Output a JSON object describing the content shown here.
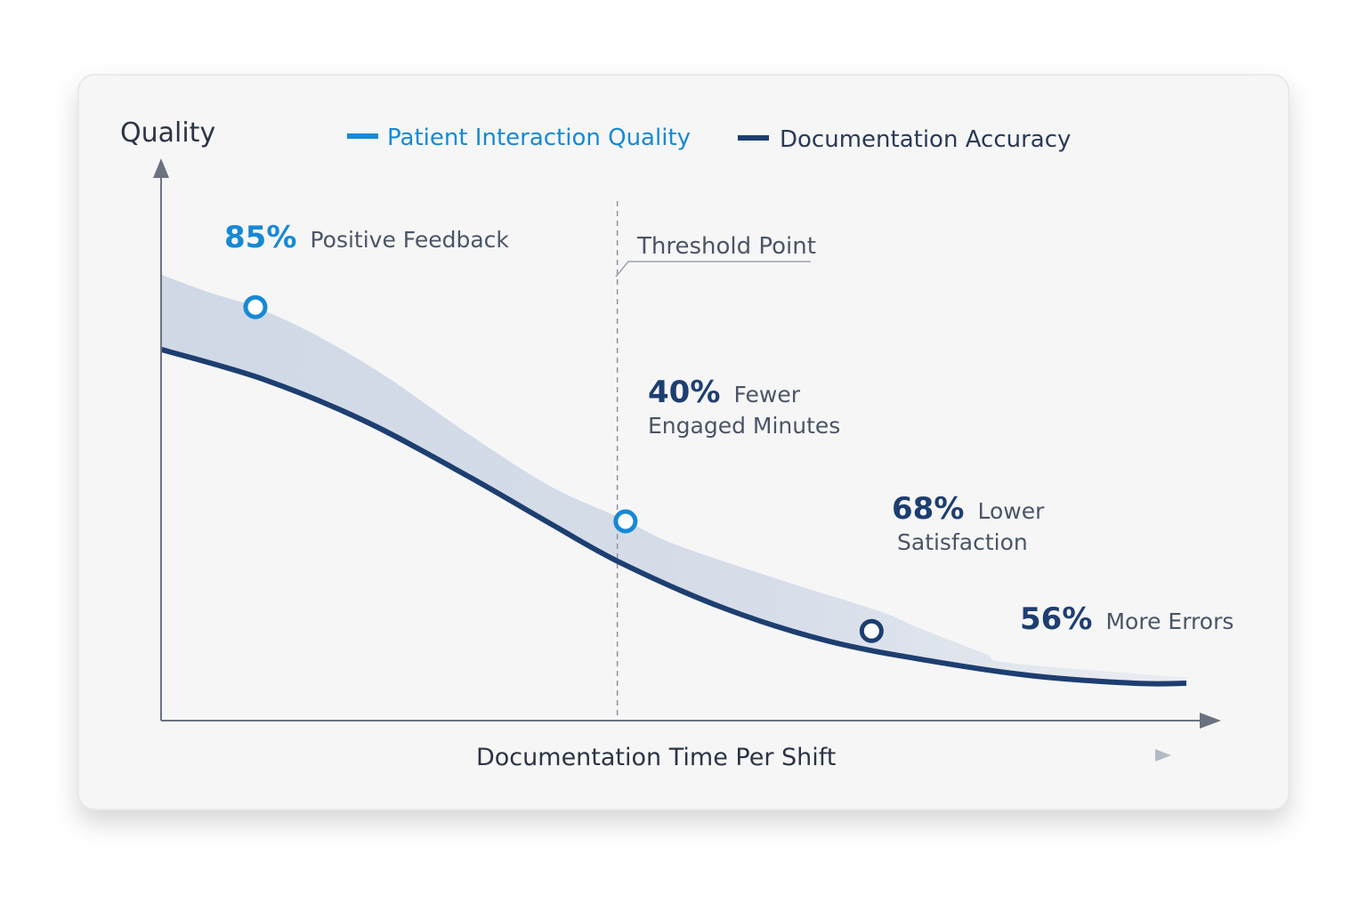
{
  "colors": {
    "light_series": "#1789d4",
    "dark_series": "#1d3e70",
    "axis": "#6b7280",
    "label_text": "#4a5566",
    "band_fill": "#c9d3e3",
    "card_bg": "#f6f6f7"
  },
  "chart_data": {
    "type": "line",
    "title": "",
    "ylabel": "Quality",
    "xlabel": "Documentation Time Per Shift",
    "xlim": [
      0,
      100
    ],
    "ylim": [
      0,
      100
    ],
    "grid": false,
    "legend_position": "top",
    "legend": [
      {
        "name": "Patient Interaction Quality",
        "color": "#1789d4"
      },
      {
        "name": "Documentation Accuracy",
        "color": "#1d3e70"
      }
    ],
    "series": [
      {
        "name": "Patient Interaction Quality",
        "x": [
          0,
          4.6,
          9.2,
          15,
          22,
          30,
          38,
          45,
          50,
          60,
          70,
          74,
          80.3,
          83
        ],
        "y": [
          82,
          78.5,
          75.5,
          70,
          61.5,
          50,
          39.5,
          33,
          28,
          21,
          14.5,
          11,
          6,
          4
        ]
      },
      {
        "name": "Documentation Accuracy",
        "x": [
          0,
          10,
          20,
          30,
          38,
          45,
          55,
          65,
          75,
          85,
          95,
          100
        ],
        "y": [
          67,
          61,
          52.5,
          41.5,
          32,
          24,
          15,
          8.5,
          4.5,
          1.5,
          0,
          0
        ]
      }
    ],
    "markers": [
      {
        "series": 0,
        "x": 9.2,
        "y": 75.5
      },
      {
        "series": 0,
        "x": 45.3,
        "y": 32.5
      },
      {
        "series": 0,
        "x": 69.3,
        "y": 10.5
      }
    ],
    "threshold": {
      "x": 44.5,
      "label": "Threshold Point"
    },
    "annotations": [
      {
        "value": "85%",
        "text": "Positive Feedback",
        "value_color": "#1789d4"
      },
      {
        "value": "40%",
        "text": "Fewer",
        "text2": "Engaged Minutes",
        "value_color": "#1d3e70"
      },
      {
        "value": "68%",
        "text": "Lower",
        "text2": "Satisfaction",
        "value_color": "#1d3e70"
      },
      {
        "value": "56%",
        "text": "More Errors",
        "value_color": "#1d3e70"
      }
    ]
  }
}
